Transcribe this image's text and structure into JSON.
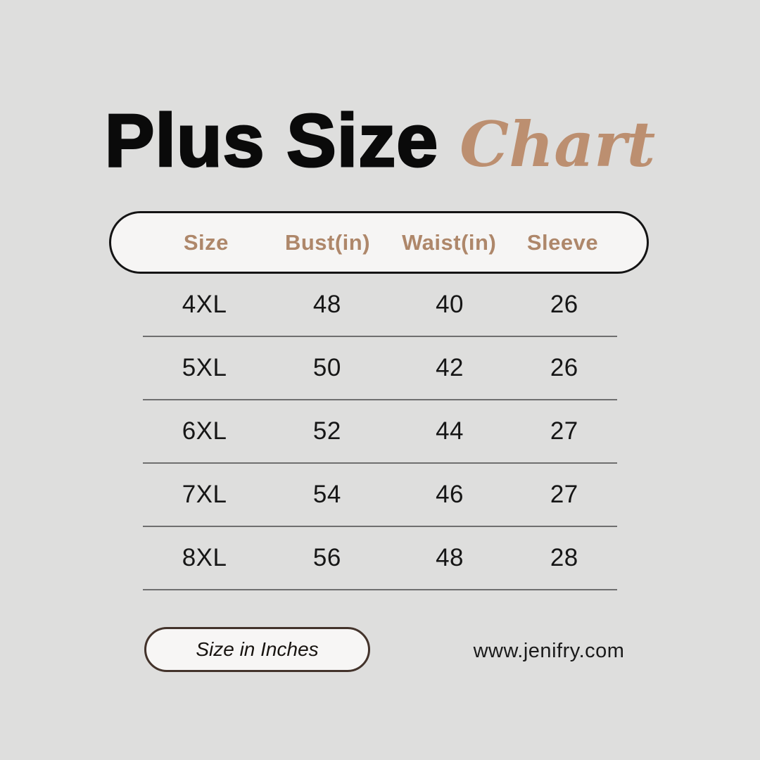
{
  "title": {
    "main": "Plus Size",
    "accent": "Chart"
  },
  "table": {
    "headers": [
      "Size",
      "Bust(in)",
      "Waist(in)",
      "Sleeve"
    ],
    "rows": [
      [
        "4XL",
        "48",
        "40",
        "26"
      ],
      [
        "5XL",
        "50",
        "42",
        "26"
      ],
      [
        "6XL",
        "52",
        "44",
        "27"
      ],
      [
        "7XL",
        "54",
        "46",
        "27"
      ],
      [
        "8XL",
        "56",
        "48",
        "28"
      ]
    ]
  },
  "footer": {
    "unit_note": "Size in Inches",
    "website": "www.jenifry.com"
  },
  "colors": {
    "background": "#dededd",
    "accent_tan": "#bc8f70",
    "header_text_tan": "#ae876a",
    "pill_fill": "#f6f5f4",
    "header_pill_border": "#141414",
    "divider_gray": "#6f6f6f",
    "inches_pill_border": "#43332b",
    "text_black": "#0a0a0a"
  }
}
